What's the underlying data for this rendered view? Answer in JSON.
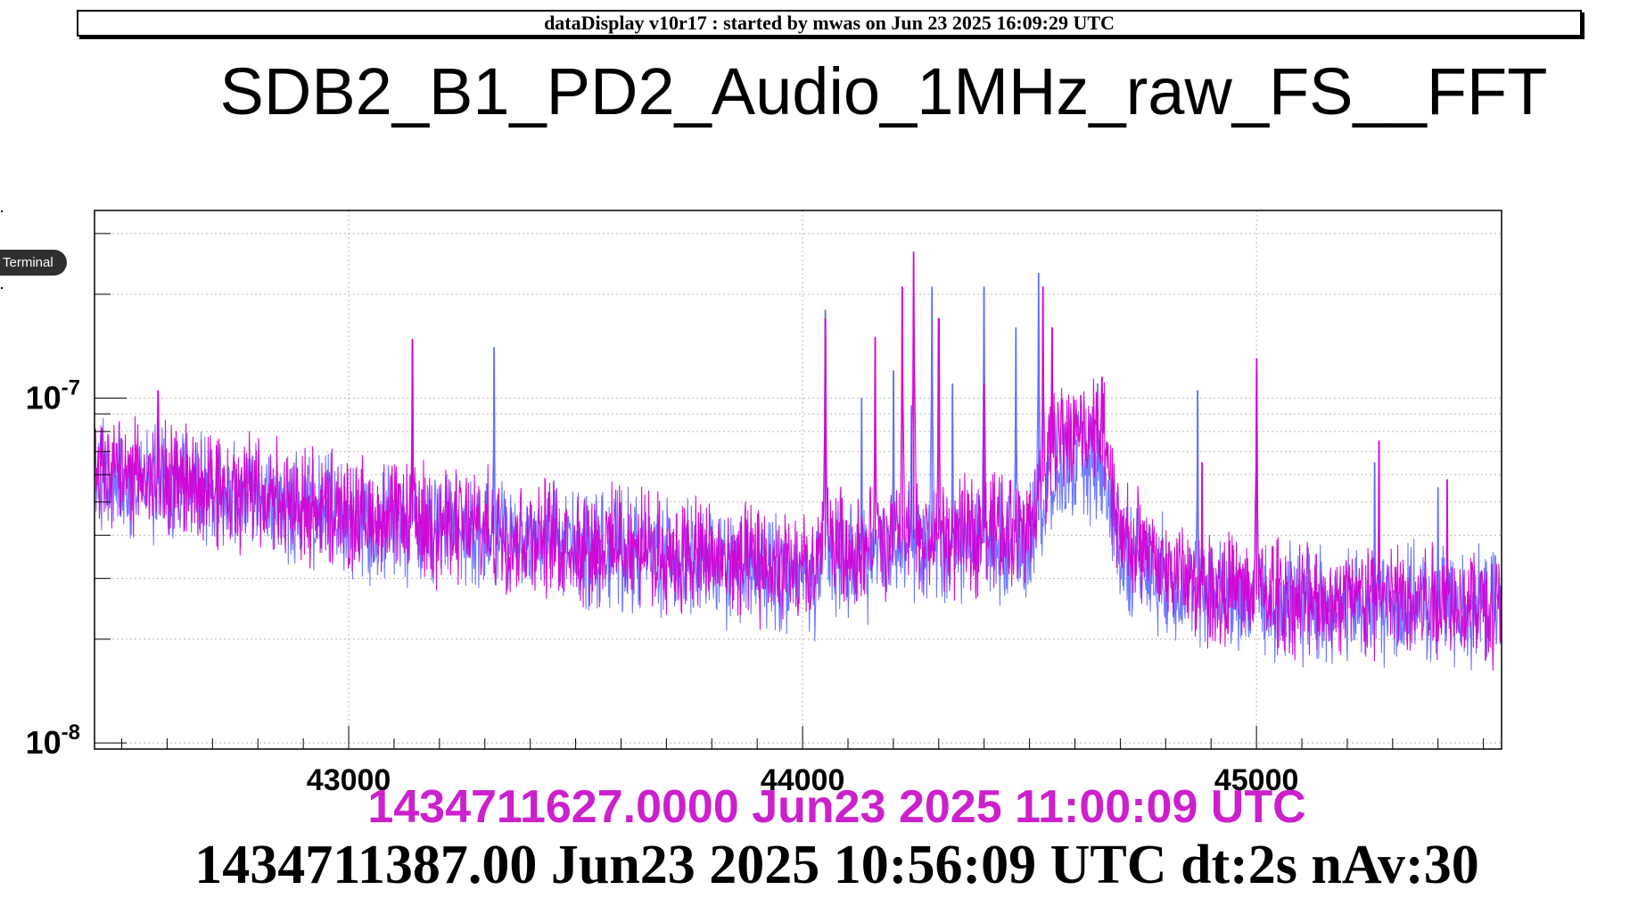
{
  "banner": "dataDisplay v10r17 : started by mwas on Jun 23 2025 16:09:29 UTC",
  "terminal_label": "Terminal",
  "colors": {
    "trace_a": "#5f6bff",
    "trace_b": "#d400d4",
    "timestamp_accent": "#cc20cc"
  },
  "timestamps": {
    "current": "1434711627.0000 Jun23 2025 11:00:09 UTC",
    "reference": "1434711387.00 Jun23 2025 10:56:09 UTC dt:2s nAv:30"
  },
  "chart_data": {
    "type": "line",
    "title": "SDB2_B1_PD2_Audio_1MHz_raw_FS__FFT",
    "xlabel": "",
    "ylabel": "",
    "xlim": [
      42440,
      45540
    ],
    "ylim": [
      9.6e-09,
      3.5e-07
    ],
    "yscale": "log",
    "grid": true,
    "x_ticks": [
      43000,
      44000,
      45000
    ],
    "x_tick_labels": [
      "43000",
      "44000",
      "45000"
    ],
    "y_ticks": [
      1e-08,
      1e-07
    ],
    "y_tick_labels": [
      {
        "base": "10",
        "exp": "-8"
      },
      {
        "base": "10",
        "exp": "-7"
      }
    ],
    "series": [
      {
        "x": [
          42440,
          42600,
          42800,
          43000,
          43200,
          43400,
          43600,
          43800,
          44000,
          44030,
          44060,
          44100,
          44200,
          44300,
          44400,
          44500,
          44560,
          44620,
          44660,
          44700,
          44800,
          44900,
          45000,
          45100,
          45200,
          45300,
          45400,
          45540
        ],
        "y": [
          6e-08,
          5.6e-08,
          5e-08,
          4.5e-08,
          4.2e-08,
          3.9e-08,
          3.6e-08,
          3.3e-08,
          3e-08,
          3e-08,
          3.6e-08,
          3.3e-08,
          3.6e-08,
          3.6e-08,
          3.8e-08,
          3.8e-08,
          6e-08,
          6.5e-08,
          6e-08,
          3.6e-08,
          3e-08,
          2.7e-08,
          2.6e-08,
          2.5e-08,
          2.5e-08,
          2.5e-08,
          2.5e-08,
          2.4e-08
        ],
        "peaks": [
          {
            "x": 42580,
            "y": 1.05e-07
          },
          {
            "x": 43140,
            "y": 1.45e-07
          },
          {
            "x": 43320,
            "y": 1.4e-07
          },
          {
            "x": 44050,
            "y": 1.8e-07
          },
          {
            "x": 44130,
            "y": 1e-07
          },
          {
            "x": 44200,
            "y": 1.2e-07
          },
          {
            "x": 44240,
            "y": 9.5e-08
          },
          {
            "x": 44285,
            "y": 2.1e-07
          },
          {
            "x": 44330,
            "y": 1.1e-07
          },
          {
            "x": 44400,
            "y": 2.1e-07
          },
          {
            "x": 44470,
            "y": 1.6e-07
          },
          {
            "x": 44520,
            "y": 2.3e-07
          },
          {
            "x": 44650,
            "y": 1.1e-07
          },
          {
            "x": 44870,
            "y": 1.05e-07
          },
          {
            "x": 45000,
            "y": 1.2e-07
          },
          {
            "x": 45260,
            "y": 6.5e-08
          },
          {
            "x": 45400,
            "y": 5.5e-08
          }
        ]
      },
      {
        "x": [
          42440,
          42600,
          42800,
          43000,
          43200,
          43400,
          43600,
          43800,
          44000,
          44030,
          44060,
          44100,
          44200,
          44300,
          44400,
          44500,
          44560,
          44620,
          44660,
          44700,
          44800,
          44900,
          45000,
          45100,
          45200,
          45300,
          45400,
          45540
        ],
        "y": [
          6.2e-08,
          5.8e-08,
          5.2e-08,
          4.6e-08,
          4.3e-08,
          4e-08,
          3.7e-08,
          3.4e-08,
          3.1e-08,
          3.2e-08,
          4e-08,
          3.6e-08,
          3.9e-08,
          3.9e-08,
          4.1e-08,
          4.3e-08,
          7.6e-08,
          8.2e-08,
          8e-08,
          4e-08,
          3.2e-08,
          2.8e-08,
          2.7e-08,
          2.6e-08,
          2.6e-08,
          2.6e-08,
          2.6e-08,
          2.5e-08
        ],
        "peaks": [
          {
            "x": 42580,
            "y": 1.05e-07
          },
          {
            "x": 43140,
            "y": 1.48e-07
          },
          {
            "x": 44050,
            "y": 1.7e-07
          },
          {
            "x": 44160,
            "y": 1.5e-07
          },
          {
            "x": 44220,
            "y": 2.1e-07
          },
          {
            "x": 44245,
            "y": 2.65e-07
          },
          {
            "x": 44300,
            "y": 1.7e-07
          },
          {
            "x": 44400,
            "y": 1.1e-07
          },
          {
            "x": 44530,
            "y": 2.1e-07
          },
          {
            "x": 44550,
            "y": 1.6e-07
          },
          {
            "x": 44660,
            "y": 1.15e-07
          },
          {
            "x": 44880,
            "y": 6.5e-08
          },
          {
            "x": 45000,
            "y": 1.3e-07
          },
          {
            "x": 45270,
            "y": 7.5e-08
          },
          {
            "x": 45420,
            "y": 5.8e-08
          }
        ]
      }
    ]
  }
}
